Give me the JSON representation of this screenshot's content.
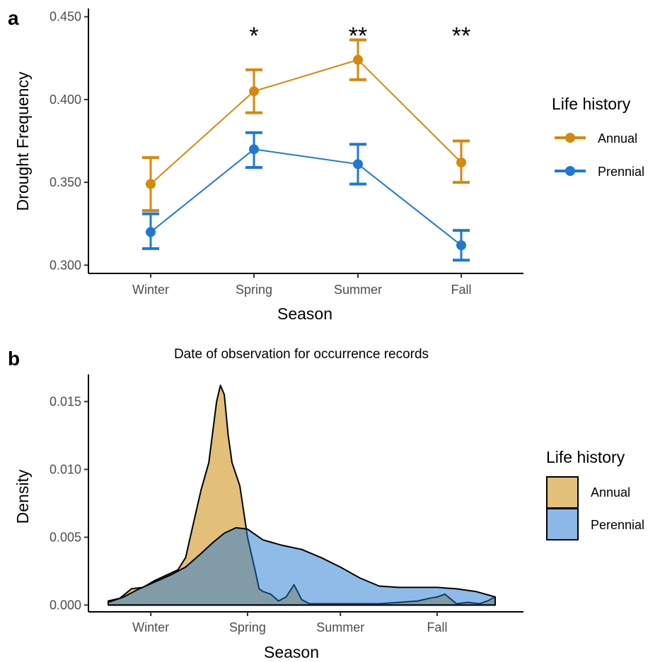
{
  "chart_data": [
    {
      "type": "line",
      "panel_label": "a",
      "title": "",
      "xlabel": "Season",
      "ylabel": "Drought Frequency",
      "categories": [
        "Winter",
        "Spring",
        "Summer",
        "Fall"
      ],
      "ylim": [
        0.295,
        0.455
      ],
      "yticks": [
        0.3,
        0.35,
        0.4,
        0.45
      ],
      "ytick_labels": [
        "0.300",
        "0.350",
        "0.400",
        "0.450"
      ],
      "grid": false,
      "legend": {
        "title": "Life history",
        "position": "right"
      },
      "significance": [
        "",
        "*",
        "**",
        "**"
      ],
      "series": [
        {
          "name": "Annual",
          "color": "#D4890B",
          "values": [
            0.349,
            0.405,
            0.424,
            0.362
          ],
          "lower": [
            0.333,
            0.392,
            0.412,
            0.35
          ],
          "upper": [
            0.365,
            0.418,
            0.436,
            0.375
          ]
        },
        {
          "name": "Prennial",
          "color": "#1F78D1",
          "values": [
            0.32,
            0.37,
            0.361,
            0.312
          ],
          "lower": [
            0.31,
            0.359,
            0.349,
            0.303
          ],
          "upper": [
            0.331,
            0.38,
            0.373,
            0.321
          ]
        }
      ]
    },
    {
      "type": "area",
      "panel_label": "b",
      "title": "Date of observation for occurrence records",
      "xlabel": "Season",
      "ylabel": "Density",
      "xlim": [
        0,
        1
      ],
      "xticks": [
        0.11,
        0.36,
        0.6,
        0.85
      ],
      "xtick_labels": [
        "Winter",
        "Spring",
        "Summer",
        "Fall"
      ],
      "ylim": [
        -0.0005,
        0.017
      ],
      "yticks": [
        0,
        0.005,
        0.01,
        0.015
      ],
      "ytick_labels": [
        "0.000",
        "0.005",
        "0.010",
        "0.015"
      ],
      "grid": false,
      "legend": {
        "title": "Life history",
        "position": "right"
      },
      "series": [
        {
          "name": "Annual",
          "color": "#E3C07A",
          "x": [
            0,
            0.03,
            0.06,
            0.09,
            0.12,
            0.15,
            0.18,
            0.2,
            0.22,
            0.24,
            0.26,
            0.28,
            0.29,
            0.3,
            0.31,
            0.32,
            0.34,
            0.36,
            0.38,
            0.39,
            0.4,
            0.42,
            0.44,
            0.46,
            0.48,
            0.5,
            0.52,
            0.55,
            0.6,
            0.65,
            0.7,
            0.75,
            0.8,
            0.83,
            0.85,
            0.87,
            0.9,
            0.93,
            0.96,
            0.98,
            1.0
          ],
          "y": [
            0.0003,
            0.0005,
            0.0012,
            0.0013,
            0.0018,
            0.0022,
            0.0026,
            0.0035,
            0.006,
            0.0085,
            0.0105,
            0.015,
            0.0162,
            0.0155,
            0.0125,
            0.0105,
            0.0088,
            0.005,
            0.0025,
            0.0012,
            0.001,
            0.0008,
            0.0003,
            0.0006,
            0.0015,
            0.0004,
            0.0001,
            0.0001,
            0.0001,
            0.0001,
            0.0001,
            0.0002,
            0.0003,
            0.0005,
            0.0006,
            0.0008,
            0.0001,
            0.0002,
            0.0001,
            0.0003,
            0.0006
          ]
        },
        {
          "name": "Perennial",
          "color": "#8BB8E6",
          "x": [
            0,
            0.04,
            0.08,
            0.12,
            0.16,
            0.2,
            0.24,
            0.27,
            0.3,
            0.33,
            0.36,
            0.4,
            0.45,
            0.5,
            0.55,
            0.6,
            0.65,
            0.7,
            0.75,
            0.8,
            0.85,
            0.9,
            0.95,
            1.0
          ],
          "y": [
            0.0002,
            0.0006,
            0.0012,
            0.0017,
            0.0022,
            0.0028,
            0.0038,
            0.0046,
            0.0053,
            0.0057,
            0.0056,
            0.0048,
            0.0044,
            0.0041,
            0.0035,
            0.0028,
            0.002,
            0.0014,
            0.0013,
            0.0013,
            0.0013,
            0.0012,
            0.001,
            0.0006
          ]
        }
      ]
    }
  ]
}
